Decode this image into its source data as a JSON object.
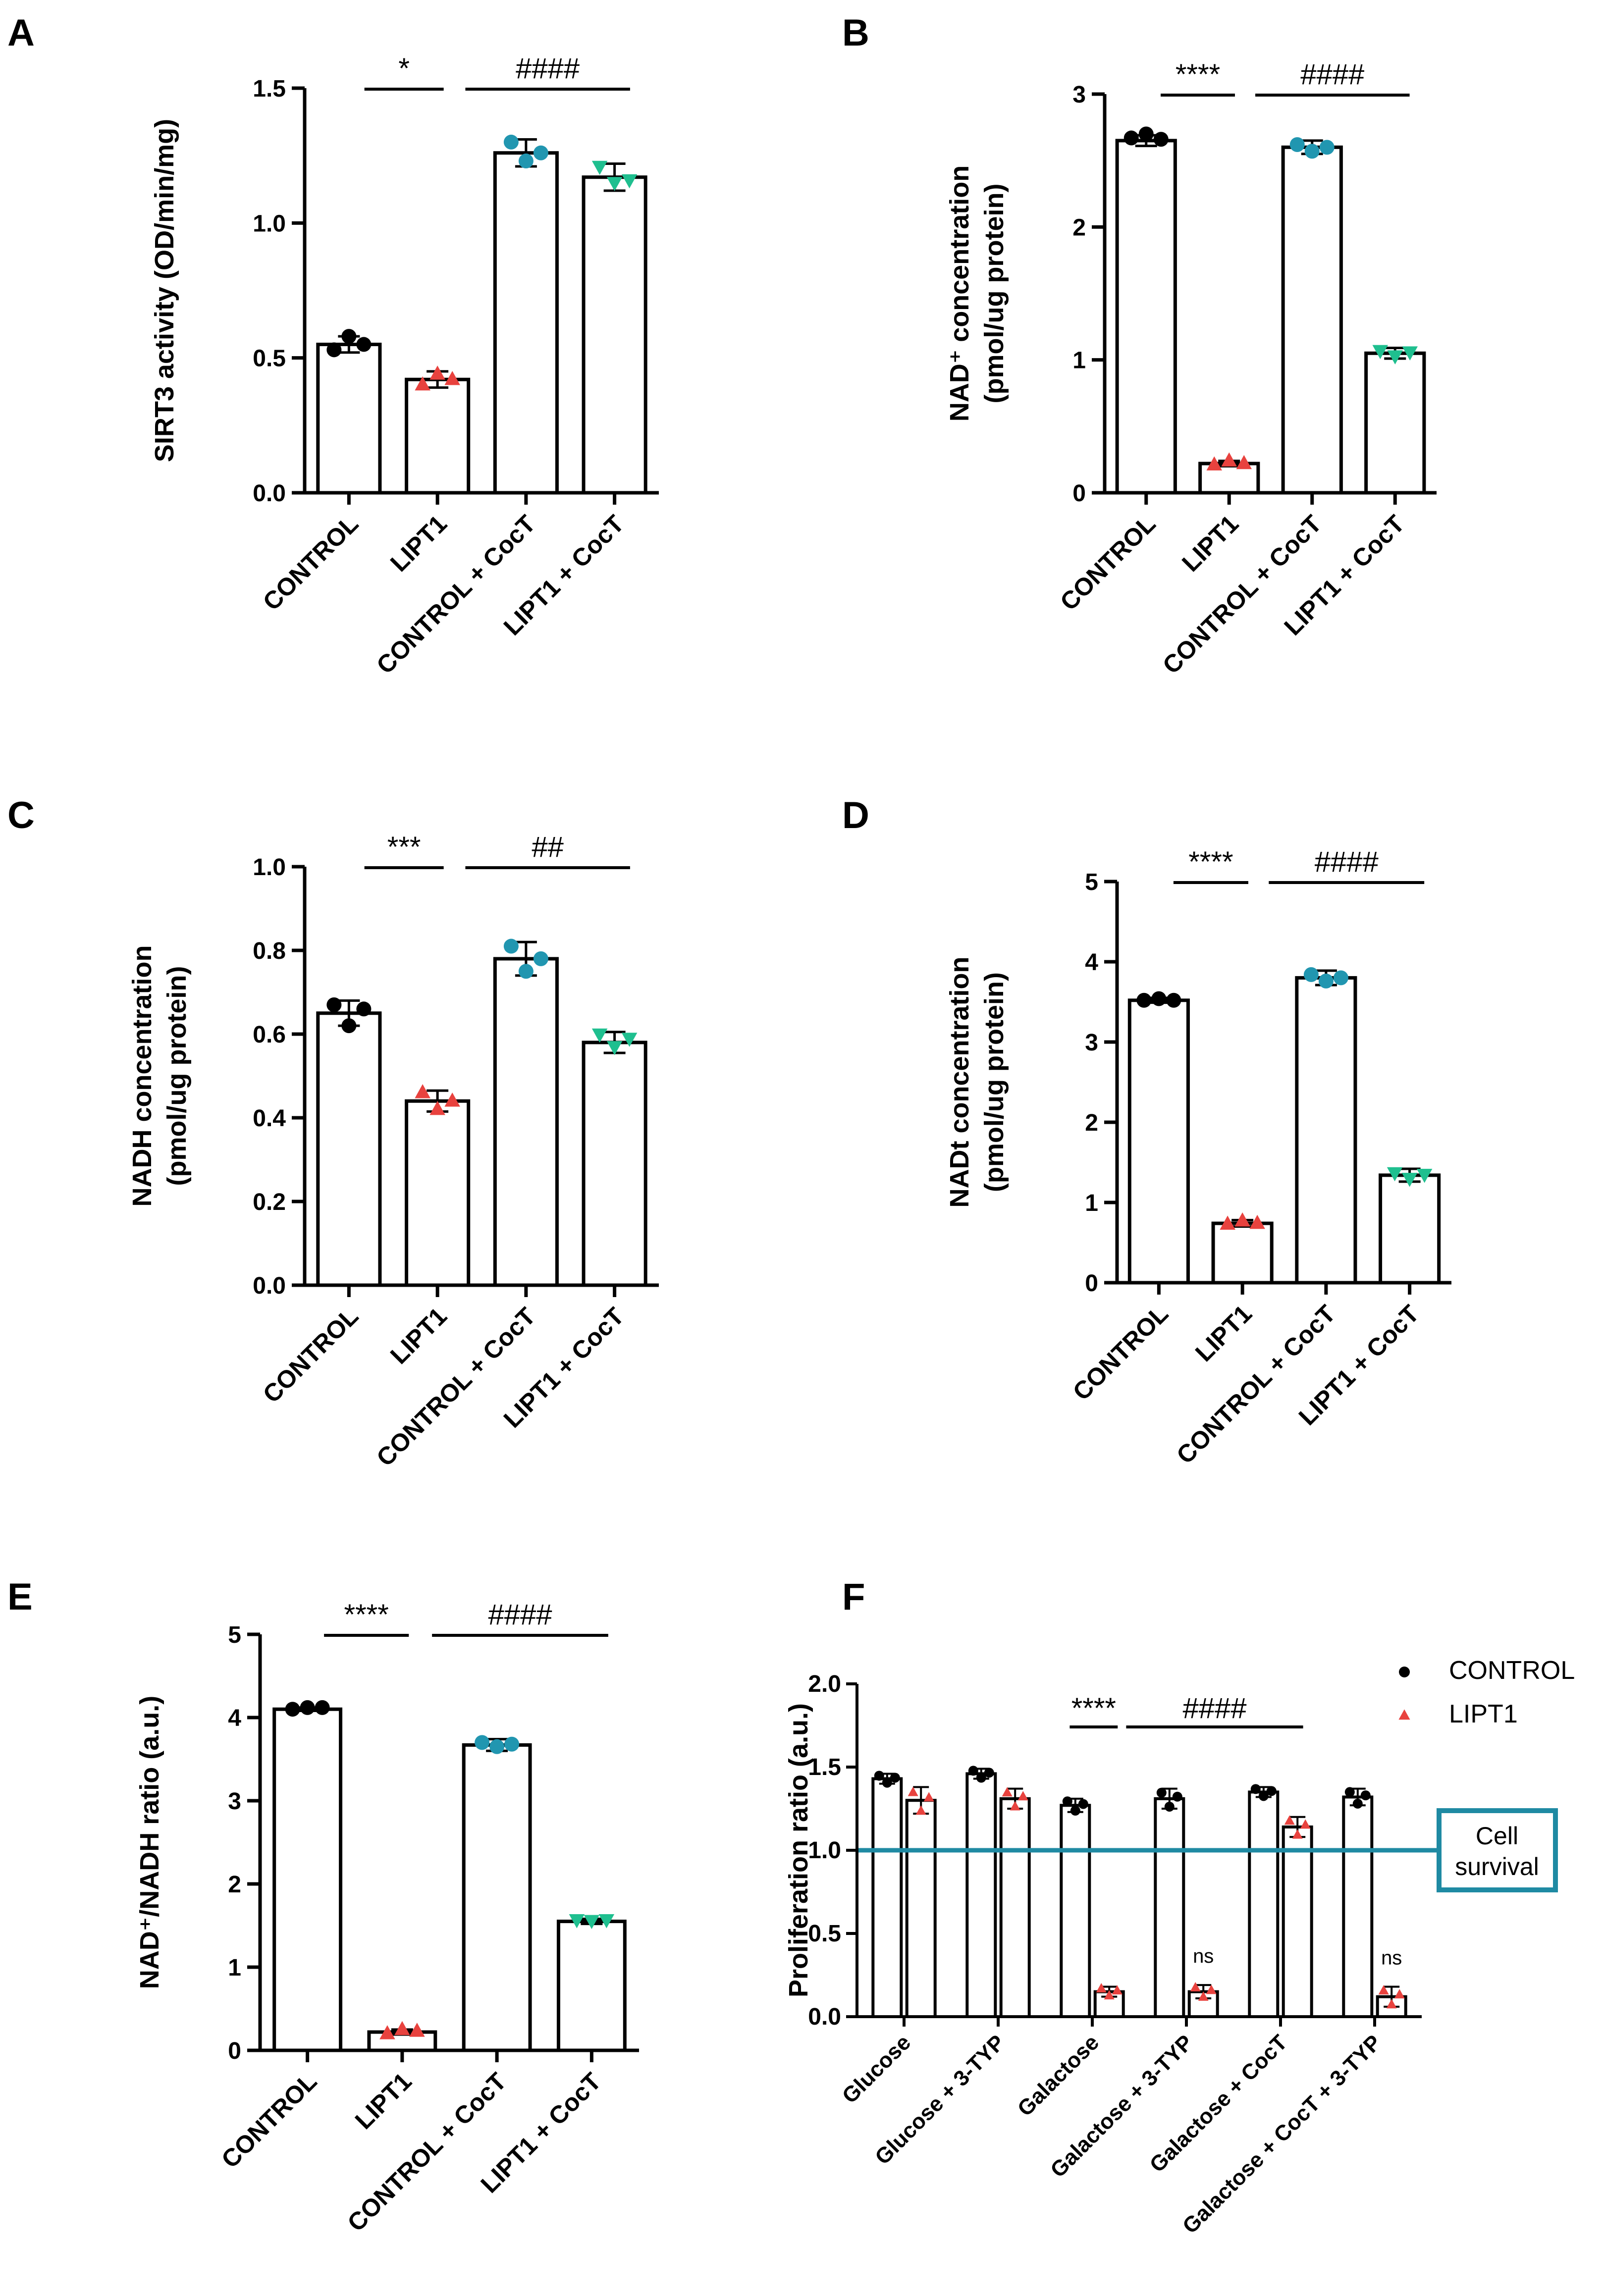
{
  "chart_data": [
    {
      "panel": "A",
      "type": "bar",
      "ylabel": "SIRT3 activity (OD/min/mg)",
      "ylim": [
        0,
        1.5
      ],
      "yticks": [
        0.0,
        0.5,
        1.0,
        1.5
      ],
      "ytick_labels": [
        "0.0",
        "0.5",
        "1.0",
        "1.5"
      ],
      "categories": [
        "CONTROL",
        "LIPT1",
        "CONTROL + CocT",
        "LIPT1 + CocT"
      ],
      "values": [
        0.55,
        0.42,
        1.26,
        1.17
      ],
      "errors": [
        0.03,
        0.03,
        0.05,
        0.05
      ],
      "points": [
        [
          0.53,
          0.58,
          0.55
        ],
        [
          0.4,
          0.44,
          0.42
        ],
        [
          1.3,
          1.23,
          1.26
        ],
        [
          1.21,
          1.15,
          1.16
        ]
      ],
      "point_colors": [
        "#000000",
        "#e8423e",
        "#2196b0",
        "#1fbf8f"
      ],
      "point_markers": [
        "circle",
        "triangle",
        "circle",
        "triangle-down"
      ],
      "significance": [
        {
          "from": 0,
          "to": 1,
          "label": "*"
        },
        {
          "from": 1,
          "to": 3,
          "label": "####"
        }
      ]
    },
    {
      "panel": "B",
      "type": "bar",
      "ylabel_line1": "NAD⁺ concentration",
      "ylabel_line2": "(pmol/ug protein)",
      "ylim": [
        0,
        3
      ],
      "yticks": [
        0,
        1,
        2,
        3
      ],
      "ytick_labels": [
        "0",
        "1",
        "2",
        "3"
      ],
      "categories": [
        "CONTROL",
        "LIPT1",
        "CONTROL + CocT",
        "LIPT1 + CocT"
      ],
      "values": [
        2.65,
        0.22,
        2.6,
        1.05
      ],
      "errors": [
        0.04,
        0.02,
        0.05,
        0.04
      ],
      "points": [
        [
          2.67,
          2.7,
          2.66
        ],
        [
          0.21,
          0.24,
          0.22
        ],
        [
          2.62,
          2.57,
          2.6
        ],
        [
          1.07,
          1.03,
          1.06
        ]
      ],
      "point_colors": [
        "#000000",
        "#e8423e",
        "#2196b0",
        "#1fbf8f"
      ],
      "point_markers": [
        "circle",
        "triangle",
        "circle",
        "triangle-down"
      ],
      "significance": [
        {
          "from": 0,
          "to": 1,
          "label": "****"
        },
        {
          "from": 1,
          "to": 3,
          "label": "####"
        }
      ]
    },
    {
      "panel": "C",
      "type": "bar",
      "ylabel_line1": "NADH concentration",
      "ylabel_line2": "(pmol/ug protein)",
      "ylim": [
        0,
        1.0
      ],
      "yticks": [
        0.0,
        0.2,
        0.4,
        0.6,
        0.8,
        1.0
      ],
      "ytick_labels": [
        "0.0",
        "0.2",
        "0.4",
        "0.6",
        "0.8",
        "1.0"
      ],
      "categories": [
        "CONTROL",
        "LIPT1",
        "CONTROL + CocT",
        "LIPT1 + CocT"
      ],
      "values": [
        0.65,
        0.44,
        0.78,
        0.58
      ],
      "errors": [
        0.03,
        0.025,
        0.04,
        0.025
      ],
      "points": [
        [
          0.67,
          0.62,
          0.66
        ],
        [
          0.46,
          0.42,
          0.44
        ],
        [
          0.81,
          0.75,
          0.78
        ],
        [
          0.6,
          0.57,
          0.59
        ]
      ],
      "point_colors": [
        "#000000",
        "#e8423e",
        "#2196b0",
        "#1fbf8f"
      ],
      "point_markers": [
        "circle",
        "triangle",
        "circle",
        "triangle-down"
      ],
      "significance": [
        {
          "from": 0,
          "to": 1,
          "label": "***"
        },
        {
          "from": 1,
          "to": 3,
          "label": "##"
        }
      ]
    },
    {
      "panel": "D",
      "type": "bar",
      "ylabel_line1": "NADt concentration",
      "ylabel_line2": "(pmol/ug protein)",
      "ylim": [
        0,
        5
      ],
      "yticks": [
        0,
        1,
        2,
        3,
        4,
        5
      ],
      "ytick_labels": [
        "0",
        "1",
        "2",
        "3",
        "4",
        "5"
      ],
      "categories": [
        "CONTROL",
        "LIPT1",
        "CONTROL + CocT",
        "LIPT1 + CocT"
      ],
      "values": [
        3.52,
        0.74,
        3.8,
        1.34
      ],
      "errors": [
        0.03,
        0.04,
        0.09,
        0.08
      ],
      "points": [
        [
          3.52,
          3.54,
          3.52
        ],
        [
          0.73,
          0.77,
          0.74
        ],
        [
          3.84,
          3.76,
          3.8
        ],
        [
          1.37,
          1.3,
          1.35
        ]
      ],
      "point_colors": [
        "#000000",
        "#e8423e",
        "#2196b0",
        "#1fbf8f"
      ],
      "point_markers": [
        "circle",
        "triangle",
        "circle",
        "triangle-down"
      ],
      "significance": [
        {
          "from": 0,
          "to": 1,
          "label": "****"
        },
        {
          "from": 1,
          "to": 3,
          "label": "####"
        }
      ]
    },
    {
      "panel": "E",
      "type": "bar",
      "ylabel": "NAD⁺/NADH ratio  (a.u.)",
      "ylim": [
        0,
        5
      ],
      "yticks": [
        0,
        1,
        2,
        3,
        4,
        5
      ],
      "ytick_labels": [
        "0",
        "1",
        "2",
        "3",
        "4",
        "5"
      ],
      "categories": [
        "CONTROL",
        "LIPT1",
        "CONTROL + CocT",
        "LIPT1 + CocT"
      ],
      "values": [
        4.1,
        0.22,
        3.67,
        1.55
      ],
      "errors": [
        0.02,
        0.03,
        0.07,
        0.03
      ],
      "points": [
        [
          4.1,
          4.12,
          4.12
        ],
        [
          0.2,
          0.25,
          0.23
        ],
        [
          3.7,
          3.65,
          3.68
        ],
        [
          1.57,
          1.56,
          1.57
        ]
      ],
      "point_colors": [
        "#000000",
        "#e8423e",
        "#2196b0",
        "#1fbf8f"
      ],
      "point_markers": [
        "circle",
        "triangle",
        "circle",
        "triangle-down"
      ],
      "significance": [
        {
          "from": 0,
          "to": 1,
          "label": "****"
        },
        {
          "from": 1,
          "to": 3,
          "label": "####"
        }
      ]
    },
    {
      "panel": "F",
      "type": "bar",
      "ylabel": "Proliferation ratio (a.u.)",
      "ylim": [
        0,
        2.0
      ],
      "yticks": [
        0.0,
        0.5,
        1.0,
        1.5,
        2.0
      ],
      "ytick_labels": [
        "0.0",
        "0.5",
        "1.0",
        "1.5",
        "2.0"
      ],
      "categories": [
        "Glucose",
        "Glucose + 3-TYP",
        "Galactose",
        "Galactose + 3-TYP",
        "Galactose + CocT",
        "Galactose + CocT + 3-TYP"
      ],
      "series": [
        {
          "name": "CONTROL",
          "color": "#000000",
          "marker": "circle",
          "values": [
            1.43,
            1.46,
            1.27,
            1.31,
            1.35,
            1.32
          ],
          "errors": [
            0.03,
            0.03,
            0.04,
            0.06,
            0.03,
            0.05
          ]
        },
        {
          "name": "LIPT1",
          "color": "#e8423e",
          "marker": "triangle",
          "values": [
            1.3,
            1.31,
            0.15,
            0.15,
            1.14,
            0.12
          ],
          "errors": [
            0.08,
            0.06,
            0.03,
            0.04,
            0.06,
            0.06
          ]
        }
      ],
      "reference_line": {
        "y": 1.0,
        "label_line1": "Cell",
        "label_line2": "survival",
        "color": "#1f8aa3"
      },
      "annotations": [
        {
          "category": 3,
          "series": "LIPT1",
          "label": "ns"
        },
        {
          "category": 5,
          "series": "LIPT1",
          "label": "ns"
        }
      ],
      "significance": [
        {
          "label": "****"
        },
        {
          "label": "####"
        }
      ]
    }
  ]
}
